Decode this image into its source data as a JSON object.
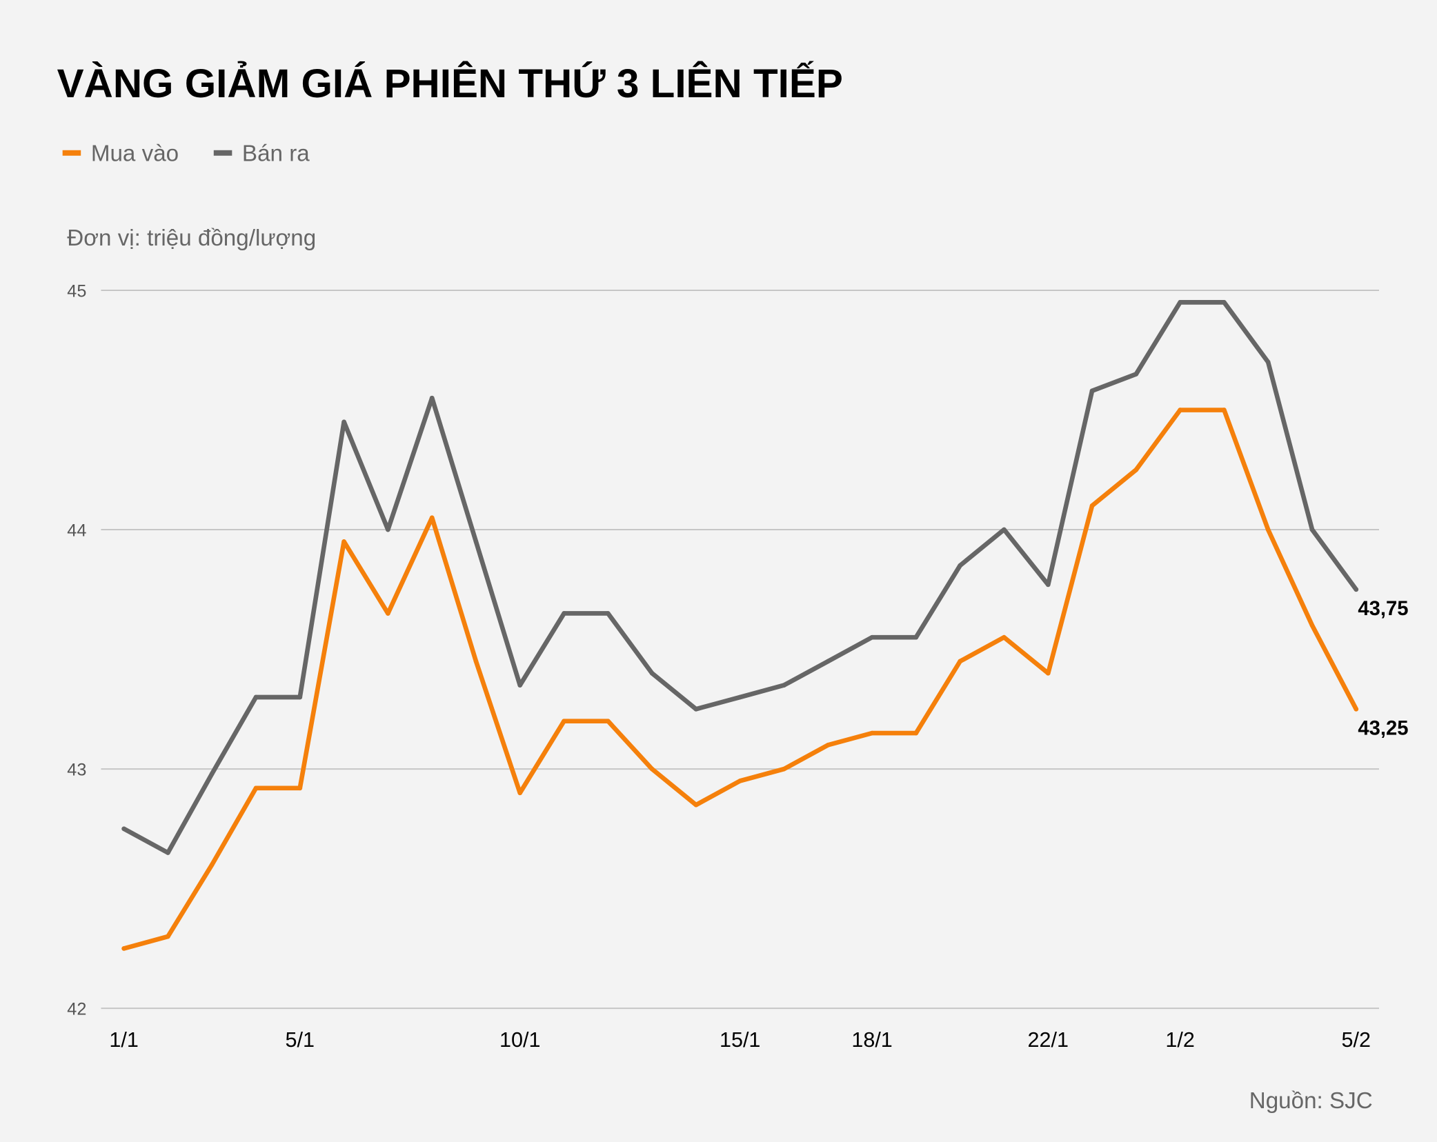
{
  "chart_data": {
    "type": "line",
    "title": "VÀNG GIẢM GIÁ PHIÊN THỨ 3 LIÊN TIẾP",
    "unit_label": "Đơn vị: triệu đồng/lượng",
    "source": "Nguồn: SJC",
    "legend_position": "top-left",
    "grid": true,
    "ylim": [
      42,
      45
    ],
    "yticks": [
      "42",
      "43",
      "44",
      "45"
    ],
    "categories": [
      "1/1",
      "",
      "",
      "",
      "5/1",
      "",
      "",
      "",
      "",
      "10/1",
      "",
      "",
      "",
      "",
      "15/1",
      "",
      "",
      "18/1",
      "",
      "",
      "",
      "22/1",
      "",
      "",
      "1/2",
      "",
      "",
      "",
      "5/2"
    ],
    "series": [
      {
        "name": "Mua vào",
        "color": "#f5800b",
        "values": [
          42.25,
          42.3,
          42.6,
          42.92,
          42.92,
          43.95,
          43.65,
          44.05,
          43.45,
          42.9,
          43.2,
          43.2,
          43.0,
          42.85,
          42.95,
          43.0,
          43.1,
          43.15,
          43.15,
          43.45,
          43.55,
          43.4,
          44.1,
          44.25,
          44.5,
          44.5,
          44.0,
          43.6,
          43.25
        ],
        "end_label": "43,25"
      },
      {
        "name": "Bán ra",
        "color": "#666666",
        "values": [
          42.75,
          42.65,
          42.98,
          43.3,
          43.3,
          44.45,
          44.0,
          44.55,
          43.95,
          43.35,
          43.65,
          43.65,
          43.4,
          43.25,
          43.3,
          43.35,
          43.45,
          43.55,
          43.55,
          43.85,
          44.0,
          43.77,
          44.58,
          44.65,
          44.95,
          44.95,
          44.7,
          44.0,
          43.75
        ],
        "end_label": "43,75"
      }
    ]
  }
}
